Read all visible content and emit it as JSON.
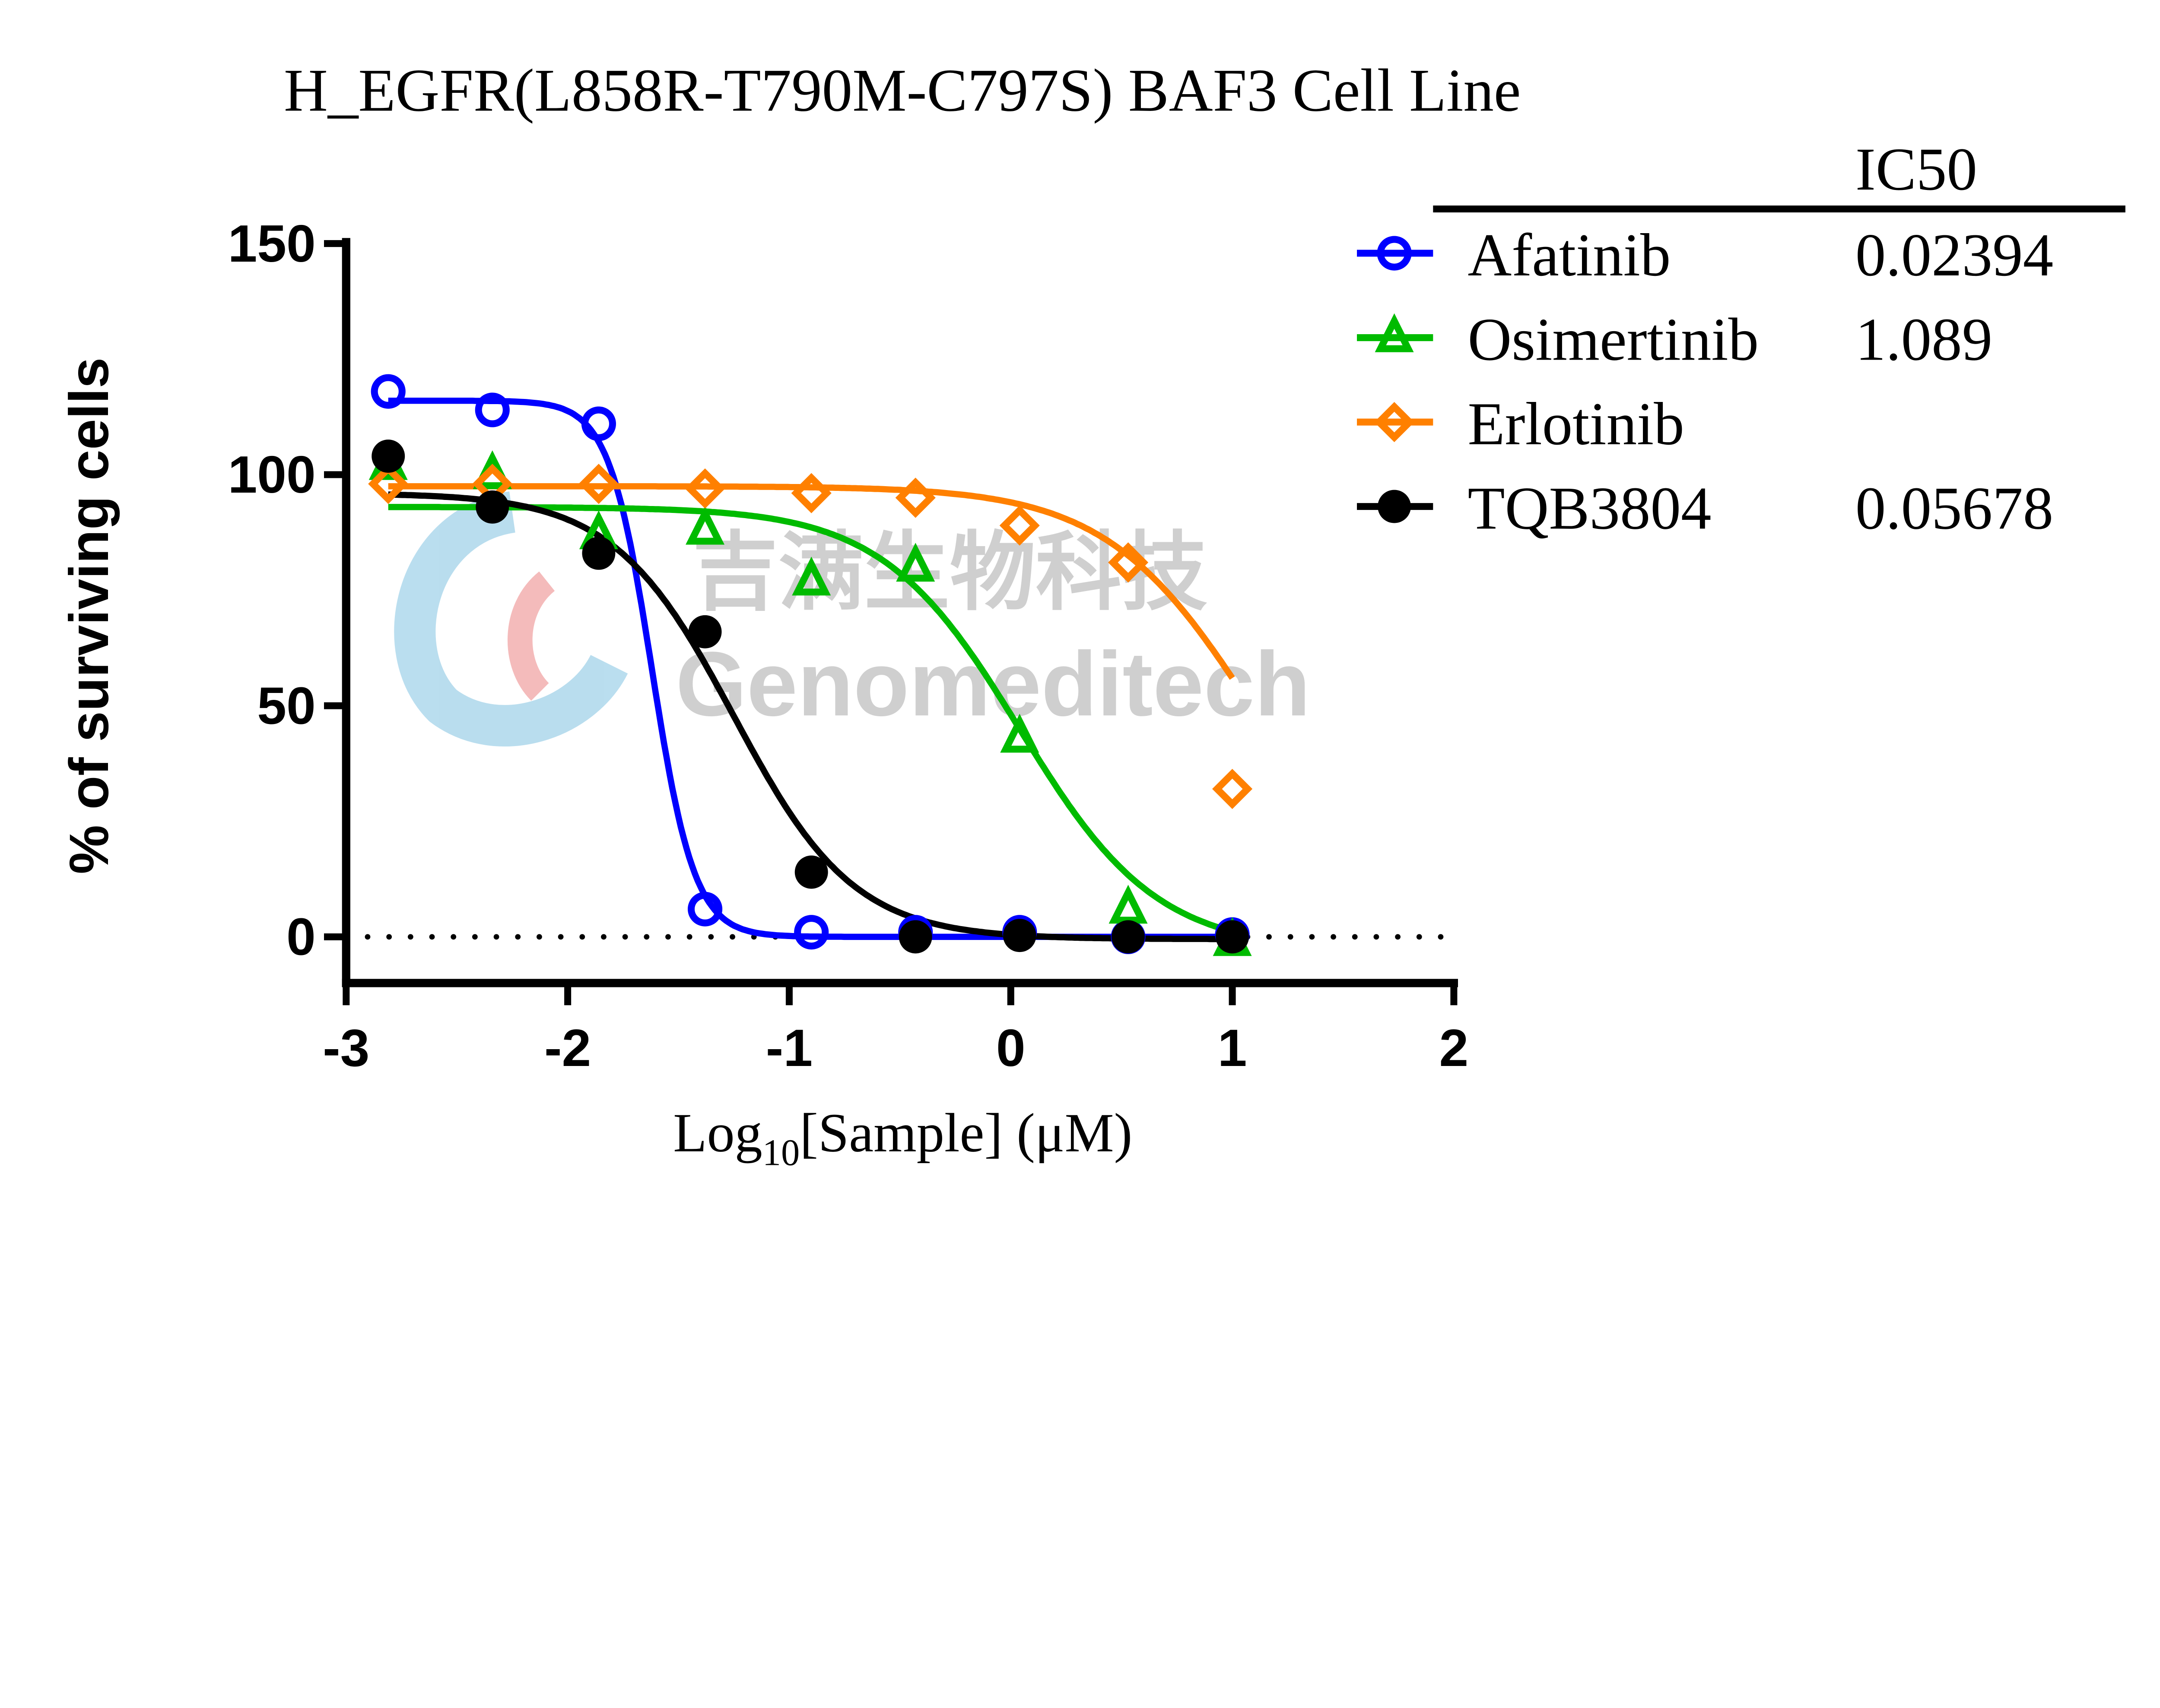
{
  "chart_data": {
    "type": "scatter",
    "title": "H_EGFR(L858R-T790M-C797S) BAF3 Cell Line",
    "xlabel_main": "Log",
    "xlabel_sub": "10",
    "xlabel_rest": "[Sample] (μM)",
    "ylabel": "% of surviving cells",
    "xlim": [
      -3,
      2
    ],
    "ylim": [
      -10,
      150
    ],
    "xticks": [
      -3,
      -2,
      -1,
      0,
      1,
      2
    ],
    "xtick_labels": [
      "-3",
      "-2",
      "-1",
      "0",
      "1",
      "2"
    ],
    "yticks": [
      0,
      50,
      100,
      150
    ],
    "ytick_labels": [
      "0",
      "50",
      "100",
      "150"
    ],
    "reference_line": {
      "y": 0,
      "style": "dotted"
    },
    "legend_header": "IC50",
    "legend_placement": "right",
    "x": [
      -2.81,
      -2.34,
      -1.86,
      -1.38,
      -0.9,
      -0.43,
      0.04,
      0.53,
      1.0
    ],
    "series": [
      {
        "name": "Afatinib",
        "ic50": "0.02394",
        "color": "#0000ff",
        "marker": "open-circle",
        "values": [
          118,
          114,
          111,
          6,
          1,
          1,
          1,
          0,
          0.5
        ],
        "fit": {
          "top": 116,
          "bottom": 0,
          "logIC50": -1.62,
          "hill": 4.5
        }
      },
      {
        "name": "Osimertinib",
        "ic50": "1.089",
        "color": "#00bb00",
        "marker": "open-triangle",
        "values": [
          102,
          100,
          87,
          88,
          77,
          80,
          43,
          6,
          -1
        ],
        "fit": {
          "top": 93,
          "bottom": -3,
          "logIC50": 0.04,
          "hill": 1.4
        }
      },
      {
        "name": "Erlotinib",
        "ic50": "",
        "color": "#ff8000",
        "marker": "open-diamond",
        "values": [
          98,
          98,
          98,
          97,
          96,
          95,
          89,
          81,
          32
        ],
        "fit": {
          "top": 97.5,
          "bottom": 0,
          "logIC50": 1.1,
          "hill": 1.3
        }
      },
      {
        "name": "TQB3804",
        "ic50": "0.05678",
        "color": "#000000",
        "marker": "filled-circle",
        "values": [
          104,
          93,
          83,
          66,
          14,
          0,
          0.3,
          0,
          0
        ],
        "fit": {
          "top": 96,
          "bottom": -0.5,
          "logIC50": -1.25,
          "hill": 1.6
        }
      }
    ]
  },
  "watermark": {
    "cn": "吉满生物科技",
    "en": "Genomeditech"
  }
}
